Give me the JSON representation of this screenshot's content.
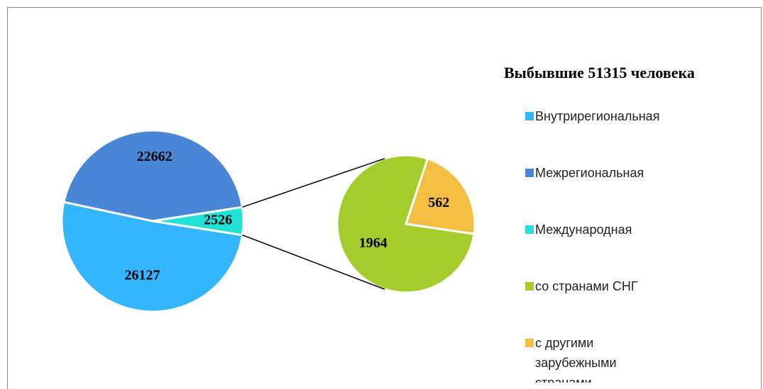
{
  "chart_data": {
    "type": "pie",
    "title": "Выбывшие 51315 человека",
    "categories": [
      "Внутрирегиональная",
      "Межрегиональная",
      "Международная",
      "со странами СНГ",
      "с другими зарубежными странами"
    ],
    "values": [
      26127,
      22662,
      2526,
      1964,
      562
    ],
    "colors": [
      "#33b6fd",
      "#4a86d6",
      "#22e2d8",
      "#a4cc2c",
      "#f4be42"
    ],
    "legend": "right"
  }
}
